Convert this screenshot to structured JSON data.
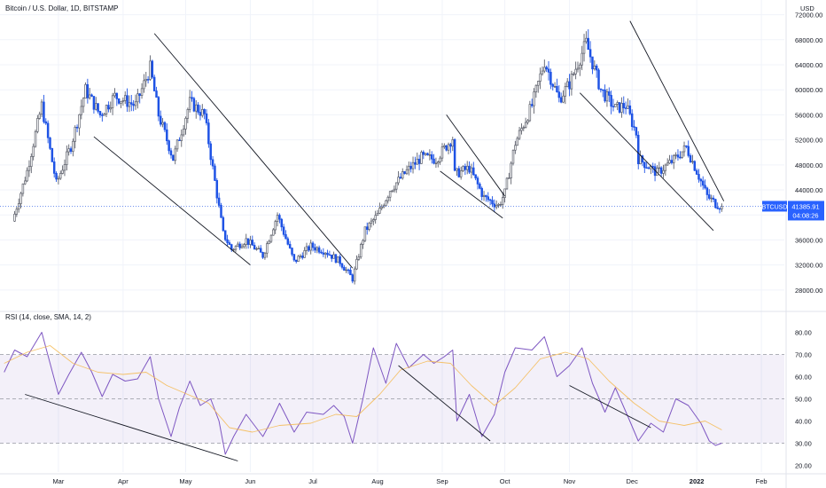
{
  "chart_data": [
    {
      "type": "candlestick",
      "title": "Bitcoin / U.S. Dollar, 1D, BITSTAMP",
      "symbol": "BTCUSD",
      "currency_label": "USD",
      "price_tag": "41385.91",
      "countdown": "04:08:26",
      "y_ticks": [
        28000,
        32000,
        36000,
        40000,
        44000,
        48000,
        52000,
        56000,
        60000,
        64000,
        68000,
        72000
      ],
      "y_tick_labels": [
        "28000.00",
        "32000.00",
        "36000.00",
        "40000.00",
        "44000.00",
        "48000.00",
        "52000.00",
        "56000.00",
        "60000.00",
        "64000.00",
        "68000.00",
        "72000.00"
      ],
      "ylim": [
        25000,
        73500
      ],
      "x_labels": [
        "Mar",
        "Apr",
        "May",
        "Jun",
        "Jul",
        "Aug",
        "Sep",
        "Oct",
        "Nov",
        "Dec",
        "2022",
        "Feb"
      ],
      "price_path": [
        [
          "2021-02-07",
          39000
        ],
        [
          "2021-02-14",
          47000
        ],
        [
          "2021-02-21",
          57500
        ],
        [
          "2021-02-28",
          45000
        ],
        [
          "2021-03-07",
          51000
        ],
        [
          "2021-03-14",
          60000
        ],
        [
          "2021-03-21",
          56000
        ],
        [
          "2021-03-28",
          59000
        ],
        [
          "2021-04-07",
          57500
        ],
        [
          "2021-04-14",
          63500
        ],
        [
          "2021-04-18",
          56000
        ],
        [
          "2021-04-25",
          49000
        ],
        [
          "2021-05-03",
          58000
        ],
        [
          "2021-05-10",
          56000
        ],
        [
          "2021-05-13",
          49500
        ],
        [
          "2021-05-19",
          37000
        ],
        [
          "2021-05-23",
          34500
        ],
        [
          "2021-05-30",
          36000
        ],
        [
          "2021-06-07",
          33500
        ],
        [
          "2021-06-14",
          40000
        ],
        [
          "2021-06-22",
          32500
        ],
        [
          "2021-06-30",
          35000
        ],
        [
          "2021-07-07",
          34200
        ],
        [
          "2021-07-14",
          32500
        ],
        [
          "2021-07-20",
          29800
        ],
        [
          "2021-07-26",
          37500
        ],
        [
          "2021-08-01",
          40000
        ],
        [
          "2021-08-07",
          44000
        ],
        [
          "2021-08-15",
          47000
        ],
        [
          "2021-08-22",
          49200
        ],
        [
          "2021-08-29",
          48900
        ],
        [
          "2021-09-06",
          52300
        ],
        [
          "2021-09-07",
          46500
        ],
        [
          "2021-09-14",
          47500
        ],
        [
          "2021-09-21",
          42800
        ],
        [
          "2021-09-28",
          41500
        ],
        [
          "2021-10-01",
          43500
        ],
        [
          "2021-10-06",
          51500
        ],
        [
          "2021-10-14",
          57500
        ],
        [
          "2021-10-20",
          64500
        ],
        [
          "2021-10-27",
          58500
        ],
        [
          "2021-11-01",
          61000
        ],
        [
          "2021-11-09",
          67500
        ],
        [
          "2021-11-16",
          60000
        ],
        [
          "2021-11-23",
          57000
        ],
        [
          "2021-11-28",
          57500
        ],
        [
          "2021-12-03",
          53000
        ],
        [
          "2021-12-04",
          49000
        ],
        [
          "2021-12-13",
          46700
        ],
        [
          "2021-12-21",
          48800
        ],
        [
          "2021-12-27",
          50800
        ],
        [
          "2022-01-01",
          47000
        ],
        [
          "2022-01-06",
          43000
        ],
        [
          "2022-01-10",
          41800
        ],
        [
          "2022-01-13",
          41385.91
        ]
      ],
      "trendlines": [
        {
          "from": [
            "2021-03-18",
            52500
          ],
          "to": [
            "2021-06-01",
            32000
          ]
        },
        {
          "from": [
            "2021-04-16",
            69000
          ],
          "to": [
            "2021-07-20",
            31500
          ]
        },
        {
          "from": [
            "2021-08-31",
            47000
          ],
          "to": [
            "2021-09-30",
            39500
          ]
        },
        {
          "from": [
            "2021-09-03",
            56000
          ],
          "to": [
            "2021-10-01",
            43000
          ]
        },
        {
          "from": [
            "2021-11-06",
            59500
          ],
          "to": [
            "2022-01-09",
            37500
          ]
        },
        {
          "from": [
            "2021-11-30",
            71000
          ],
          "to": [
            "2022-01-14",
            42200
          ]
        }
      ]
    },
    {
      "type": "line",
      "title": "RSI (14, close, SMA, 14, 2)",
      "y_ticks": [
        20,
        30,
        40,
        50,
        60,
        70,
        80
      ],
      "y_tick_labels": [
        "20.00",
        "30.00",
        "40.00",
        "50.00",
        "60.00",
        "70.00",
        "80.00"
      ],
      "ylim": [
        17,
        85
      ],
      "band": [
        30,
        70
      ],
      "middle_level": 50,
      "series": [
        {
          "color": "#7e57c2",
          "points": [
            [
              "2021-02-03",
              62
            ],
            [
              "2021-02-08",
              72
            ],
            [
              "2021-02-14",
              69
            ],
            [
              "2021-02-21",
              80
            ],
            [
              "2021-02-25",
              66
            ],
            [
              "2021-03-01",
              52
            ],
            [
              "2021-03-06",
              61
            ],
            [
              "2021-03-12",
              71
            ],
            [
              "2021-03-17",
              62
            ],
            [
              "2021-03-22",
              51
            ],
            [
              "2021-03-27",
              61
            ],
            [
              "2021-04-02",
              58
            ],
            [
              "2021-04-08",
              59
            ],
            [
              "2021-04-14",
              69
            ],
            [
              "2021-04-18",
              50
            ],
            [
              "2021-04-24",
              33
            ],
            [
              "2021-04-28",
              46
            ],
            [
              "2021-05-03",
              58
            ],
            [
              "2021-05-08",
              47
            ],
            [
              "2021-05-13",
              50
            ],
            [
              "2021-05-17",
              40
            ],
            [
              "2021-05-20",
              25
            ],
            [
              "2021-05-24",
              33
            ],
            [
              "2021-05-30",
              43
            ],
            [
              "2021-06-07",
              33
            ],
            [
              "2021-06-11",
              40
            ],
            [
              "2021-06-15",
              48
            ],
            [
              "2021-06-22",
              35
            ],
            [
              "2021-06-28",
              44
            ],
            [
              "2021-07-06",
              43
            ],
            [
              "2021-07-11",
              47
            ],
            [
              "2021-07-16",
              42
            ],
            [
              "2021-07-20",
              30
            ],
            [
              "2021-07-25",
              50
            ],
            [
              "2021-07-30",
              73
            ],
            [
              "2021-08-05",
              57
            ],
            [
              "2021-08-10",
              75
            ],
            [
              "2021-08-16",
              64
            ],
            [
              "2021-08-23",
              70
            ],
            [
              "2021-08-28",
              66
            ],
            [
              "2021-09-02",
              69
            ],
            [
              "2021-09-06",
              72
            ],
            [
              "2021-09-08",
              40
            ],
            [
              "2021-09-14",
              52
            ],
            [
              "2021-09-20",
              33
            ],
            [
              "2021-09-26",
              43
            ],
            [
              "2021-10-01",
              62
            ],
            [
              "2021-10-06",
              73
            ],
            [
              "2021-10-14",
              72
            ],
            [
              "2021-10-20",
              78
            ],
            [
              "2021-10-26",
              60
            ],
            [
              "2021-11-01",
              65
            ],
            [
              "2021-11-07",
              73
            ],
            [
              "2021-11-12",
              57
            ],
            [
              "2021-11-18",
              44
            ],
            [
              "2021-11-23",
              55
            ],
            [
              "2021-11-29",
              42
            ],
            [
              "2021-12-04",
              31
            ],
            [
              "2021-12-10",
              39
            ],
            [
              "2021-12-16",
              35
            ],
            [
              "2021-12-22",
              50
            ],
            [
              "2021-12-28",
              47
            ],
            [
              "2022-01-03",
              39
            ],
            [
              "2022-01-07",
              31
            ],
            [
              "2022-01-10",
              29
            ],
            [
              "2022-01-13",
              30
            ]
          ]
        },
        {
          "color": "#f5b94f",
          "points": [
            [
              "2021-02-03",
              66
            ],
            [
              "2021-02-14",
              71
            ],
            [
              "2021-02-25",
              74
            ],
            [
              "2021-03-08",
              66
            ],
            [
              "2021-03-20",
              62
            ],
            [
              "2021-04-01",
              61
            ],
            [
              "2021-04-12",
              62
            ],
            [
              "2021-04-22",
              56
            ],
            [
              "2021-05-02",
              52
            ],
            [
              "2021-05-12",
              48
            ],
            [
              "2021-05-22",
              37
            ],
            [
              "2021-06-02",
              35
            ],
            [
              "2021-06-15",
              38
            ],
            [
              "2021-06-30",
              39
            ],
            [
              "2021-07-12",
              43
            ],
            [
              "2021-07-22",
              42
            ],
            [
              "2021-08-02",
              52
            ],
            [
              "2021-08-12",
              63
            ],
            [
              "2021-08-25",
              67
            ],
            [
              "2021-09-05",
              66
            ],
            [
              "2021-09-15",
              56
            ],
            [
              "2021-09-26",
              47
            ],
            [
              "2021-10-06",
              55
            ],
            [
              "2021-10-18",
              68
            ],
            [
              "2021-10-30",
              71
            ],
            [
              "2021-11-10",
              68
            ],
            [
              "2021-11-20",
              58
            ],
            [
              "2021-12-02",
              48
            ],
            [
              "2021-12-14",
              40
            ],
            [
              "2021-12-26",
              38
            ],
            [
              "2022-01-05",
              40
            ],
            [
              "2022-01-13",
              36
            ]
          ]
        }
      ],
      "trendlines": [
        {
          "from": [
            "2021-02-13",
            52
          ],
          "to": [
            "2021-05-26",
            22
          ]
        },
        {
          "from": [
            "2021-08-11",
            65
          ],
          "to": [
            "2021-09-24",
            31
          ]
        },
        {
          "from": [
            "2021-11-01",
            56
          ],
          "to": [
            "2021-12-10",
            37
          ]
        }
      ]
    }
  ]
}
